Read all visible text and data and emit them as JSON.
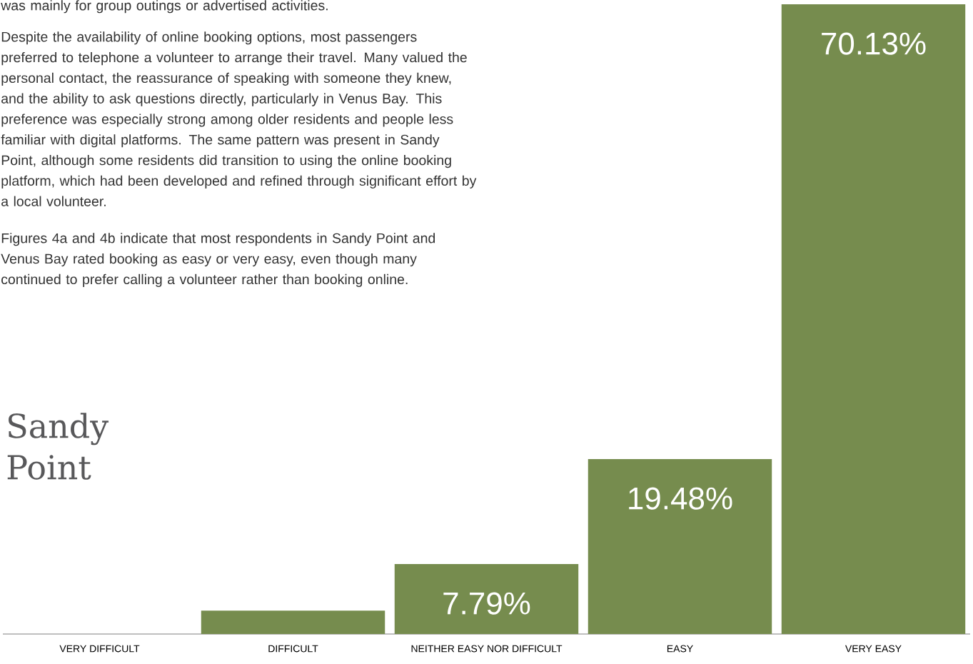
{
  "chart_data": {
    "type": "bar",
    "title": "Sandy Point",
    "annotations": [
      "was mainly for group outings or advertised activities.",
      "Despite the availability of online booking options, most passengers preferred to telephone a volunteer to arrange their travel. Many valued the personal contact, the reassurance of speaking with someone they knew, and the ability to ask questions directly, particularly in Venus Bay. This preference was especially strong among older residents and people less familiar with digital platforms. The same pattern was present in Sandy Point, although some residents did transition to using the online booking platform, which had been developed and refined through significant effort by a local volunteer.",
      "Figures 4a and 4b indicate that most respondents in Sandy Point and Venus Bay rated booking as easy or very easy, even though many continued to prefer calling a volunteer rather than booking online."
    ],
    "categories": [
      "VERY DIFFICULT",
      "DIFFICULT",
      "NEITHER EASY NOR DIFFICULT",
      "EASY",
      "VERY EASY"
    ],
    "values": [
      0,
      2.6,
      7.79,
      19.48,
      70.13
    ],
    "value_labels": [
      null,
      null,
      "7.79%",
      "19.48%",
      "70.13%"
    ],
    "color": "#768c4e"
  }
}
